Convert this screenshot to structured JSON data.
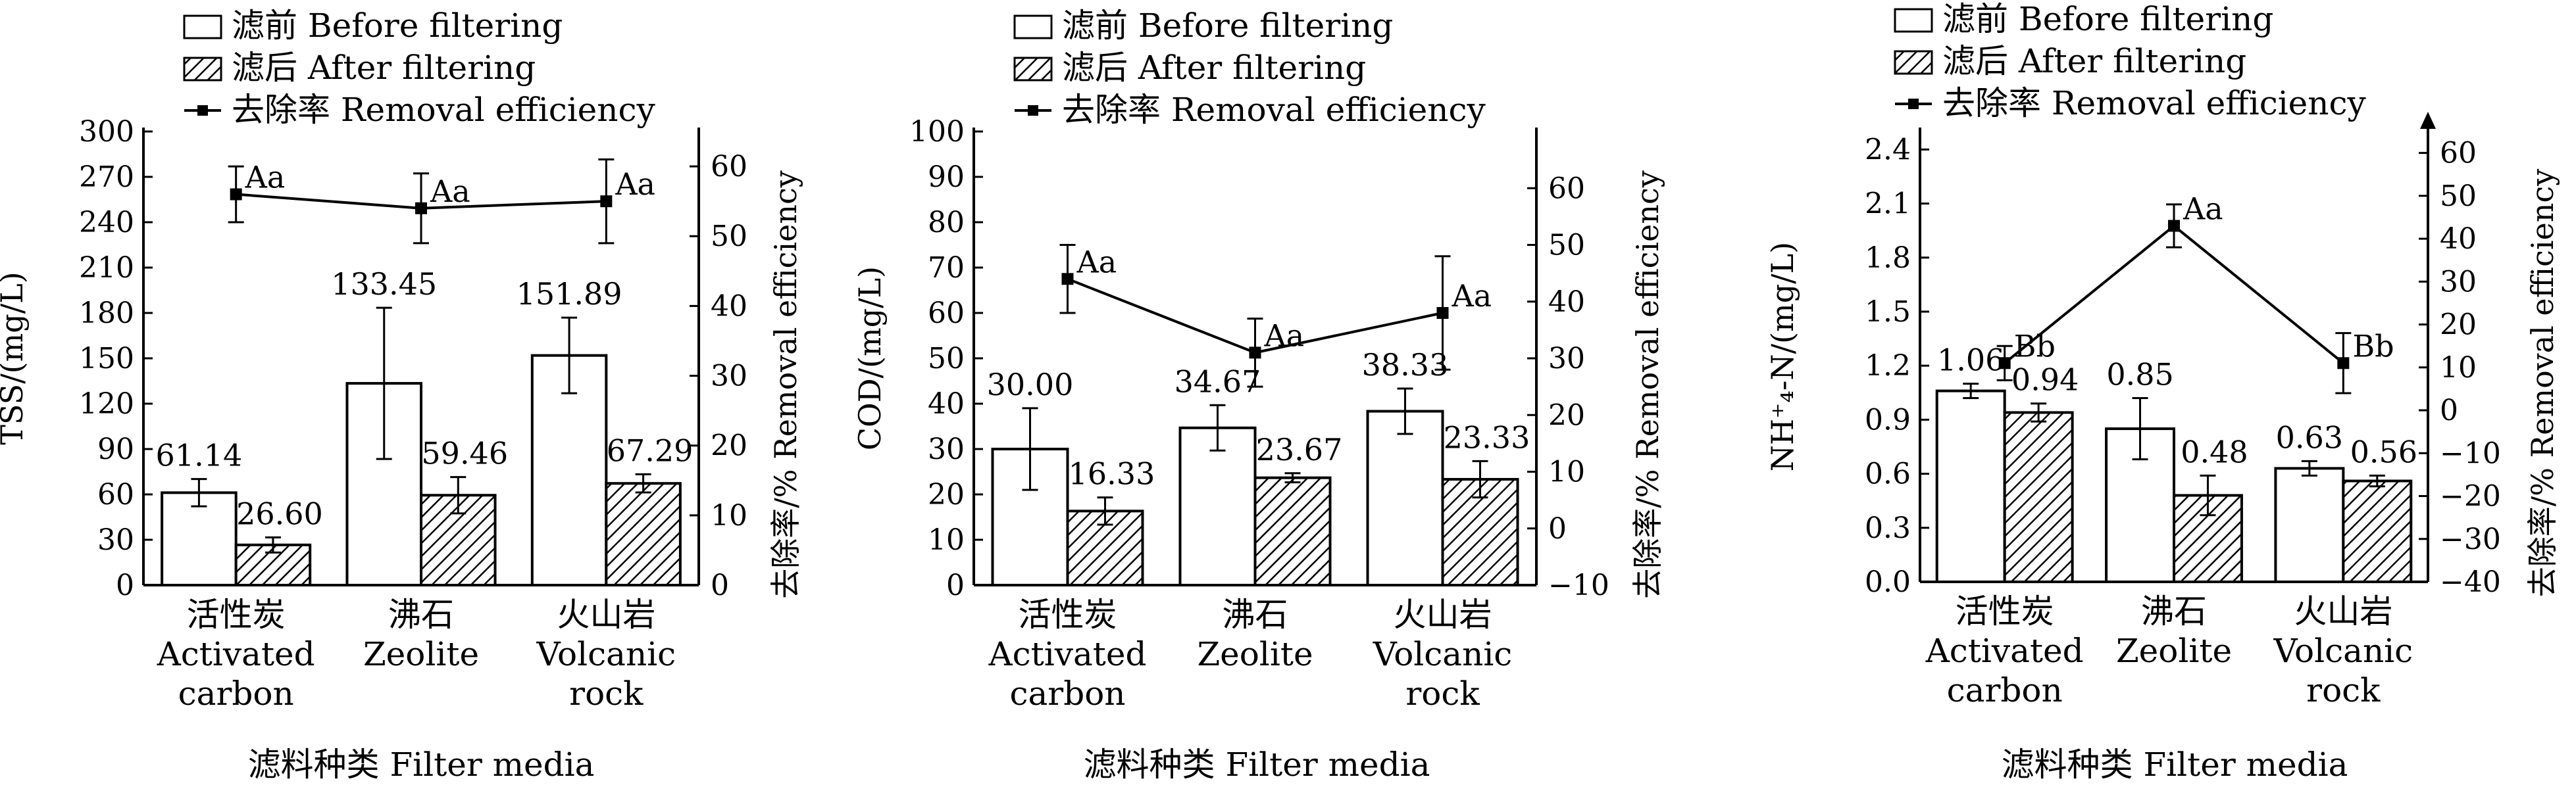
{
  "legend": {
    "before": "滤前 Before filtering",
    "after": "滤后 After filtering",
    "removal": "去除率 Removal efficiency"
  },
  "x_title": "滤料种类  Filter media",
  "categories": [
    {
      "zh": "活性炭",
      "en1": "Activated",
      "en2": "carbon"
    },
    {
      "zh": "沸石",
      "en1": "Zeolite",
      "en2": ""
    },
    {
      "zh": "火山岩",
      "en1": "Volcanic",
      "en2": "rock"
    }
  ],
  "chart_data": [
    {
      "type": "bar",
      "ylabel": "TSS/(mg/L)",
      "y2label": "去除率/% Removal efficiency",
      "ylim": [
        0,
        300
      ],
      "yticks": [
        0,
        30,
        60,
        90,
        120,
        150,
        180,
        210,
        240,
        270,
        300
      ],
      "y2lim": [
        0,
        65
      ],
      "y2ticks": [
        0,
        10,
        20,
        30,
        40,
        50,
        60
      ],
      "categories": [
        "活性炭 Activated carbon",
        "沸石 Zeolite",
        "火山岩 Volcanic rock"
      ],
      "series": [
        {
          "name": "滤前 Before filtering",
          "values": [
            61.14,
            133.45,
            151.89
          ],
          "labels": [
            "61.14",
            "133.45",
            "151.89"
          ],
          "err": [
            9,
            50,
            25
          ]
        },
        {
          "name": "滤后 After filtering",
          "values": [
            26.6,
            59.46,
            67.29
          ],
          "labels": [
            "26.60",
            "59.46",
            "67.29"
          ],
          "err": [
            5,
            12,
            6
          ]
        },
        {
          "name": "去除率 Removal efficiency",
          "axis": "right",
          "values": [
            56,
            54,
            55
          ],
          "labels": [
            "Aa",
            "Aa",
            "Aa"
          ],
          "err": [
            4,
            5,
            6
          ]
        }
      ]
    },
    {
      "type": "bar",
      "ylabel": "COD/(mg/L)",
      "y2label": "去除率/% Removal efficiency",
      "ylim": [
        0,
        100
      ],
      "yticks": [
        0,
        10,
        20,
        30,
        40,
        50,
        60,
        70,
        80,
        90,
        100
      ],
      "y2lim": [
        -10,
        70
      ],
      "y2ticks": [
        -10,
        0,
        10,
        20,
        30,
        40,
        50,
        60
      ],
      "categories": [
        "活性炭 Activated carbon",
        "沸石 Zeolite",
        "火山岩 Volcanic rock"
      ],
      "series": [
        {
          "name": "滤前 Before filtering",
          "values": [
            30.0,
            34.67,
            38.33
          ],
          "labels": [
            "30.00",
            "34.67",
            "38.33"
          ],
          "err": [
            9,
            5,
            5
          ]
        },
        {
          "name": "滤后 After filtering",
          "values": [
            16.33,
            23.67,
            23.33
          ],
          "labels": [
            "16.33",
            "23.67",
            "23.33"
          ],
          "err": [
            3,
            1,
            4
          ]
        },
        {
          "name": "去除率 Removal efficiency",
          "axis": "right",
          "values": [
            44,
            31,
            38
          ],
          "labels": [
            "Aa",
            "Aa",
            "Aa"
          ],
          "err": [
            6,
            6,
            10
          ]
        }
      ]
    },
    {
      "type": "bar",
      "ylabel": "NH⁺₄-N/(mg/L)",
      "y2label": "去除率/% Removal efficiency",
      "ylim": [
        0,
        2.5
      ],
      "yticks": [
        0.0,
        0.3,
        0.6,
        0.9,
        1.2,
        1.5,
        1.8,
        2.1,
        2.4
      ],
      "y2lim": [
        -40,
        65
      ],
      "y2ticks": [
        -40,
        -30,
        -20,
        -10,
        0,
        10,
        20,
        30,
        40,
        50,
        60
      ],
      "categories": [
        "活性炭 Activated carbon",
        "沸石 Zeolite",
        "火山岩 Volcanic rock"
      ],
      "series": [
        {
          "name": "滤前 Before filtering",
          "values": [
            1.06,
            0.85,
            0.63
          ],
          "labels": [
            "1.06",
            "0.85",
            "0.63"
          ],
          "err": [
            0.04,
            0.17,
            0.04
          ]
        },
        {
          "name": "滤后 After filtering",
          "values": [
            0.94,
            0.48,
            0.56
          ],
          "labels": [
            "0.94",
            "0.48",
            "0.56"
          ],
          "err": [
            0.05,
            0.11,
            0.03
          ]
        },
        {
          "name": "去除率 Removal efficiency",
          "axis": "right",
          "values": [
            11,
            43,
            11
          ],
          "labels": [
            "Bb",
            "Aa",
            "Bb"
          ],
          "err": [
            4,
            5,
            7
          ]
        }
      ]
    }
  ]
}
